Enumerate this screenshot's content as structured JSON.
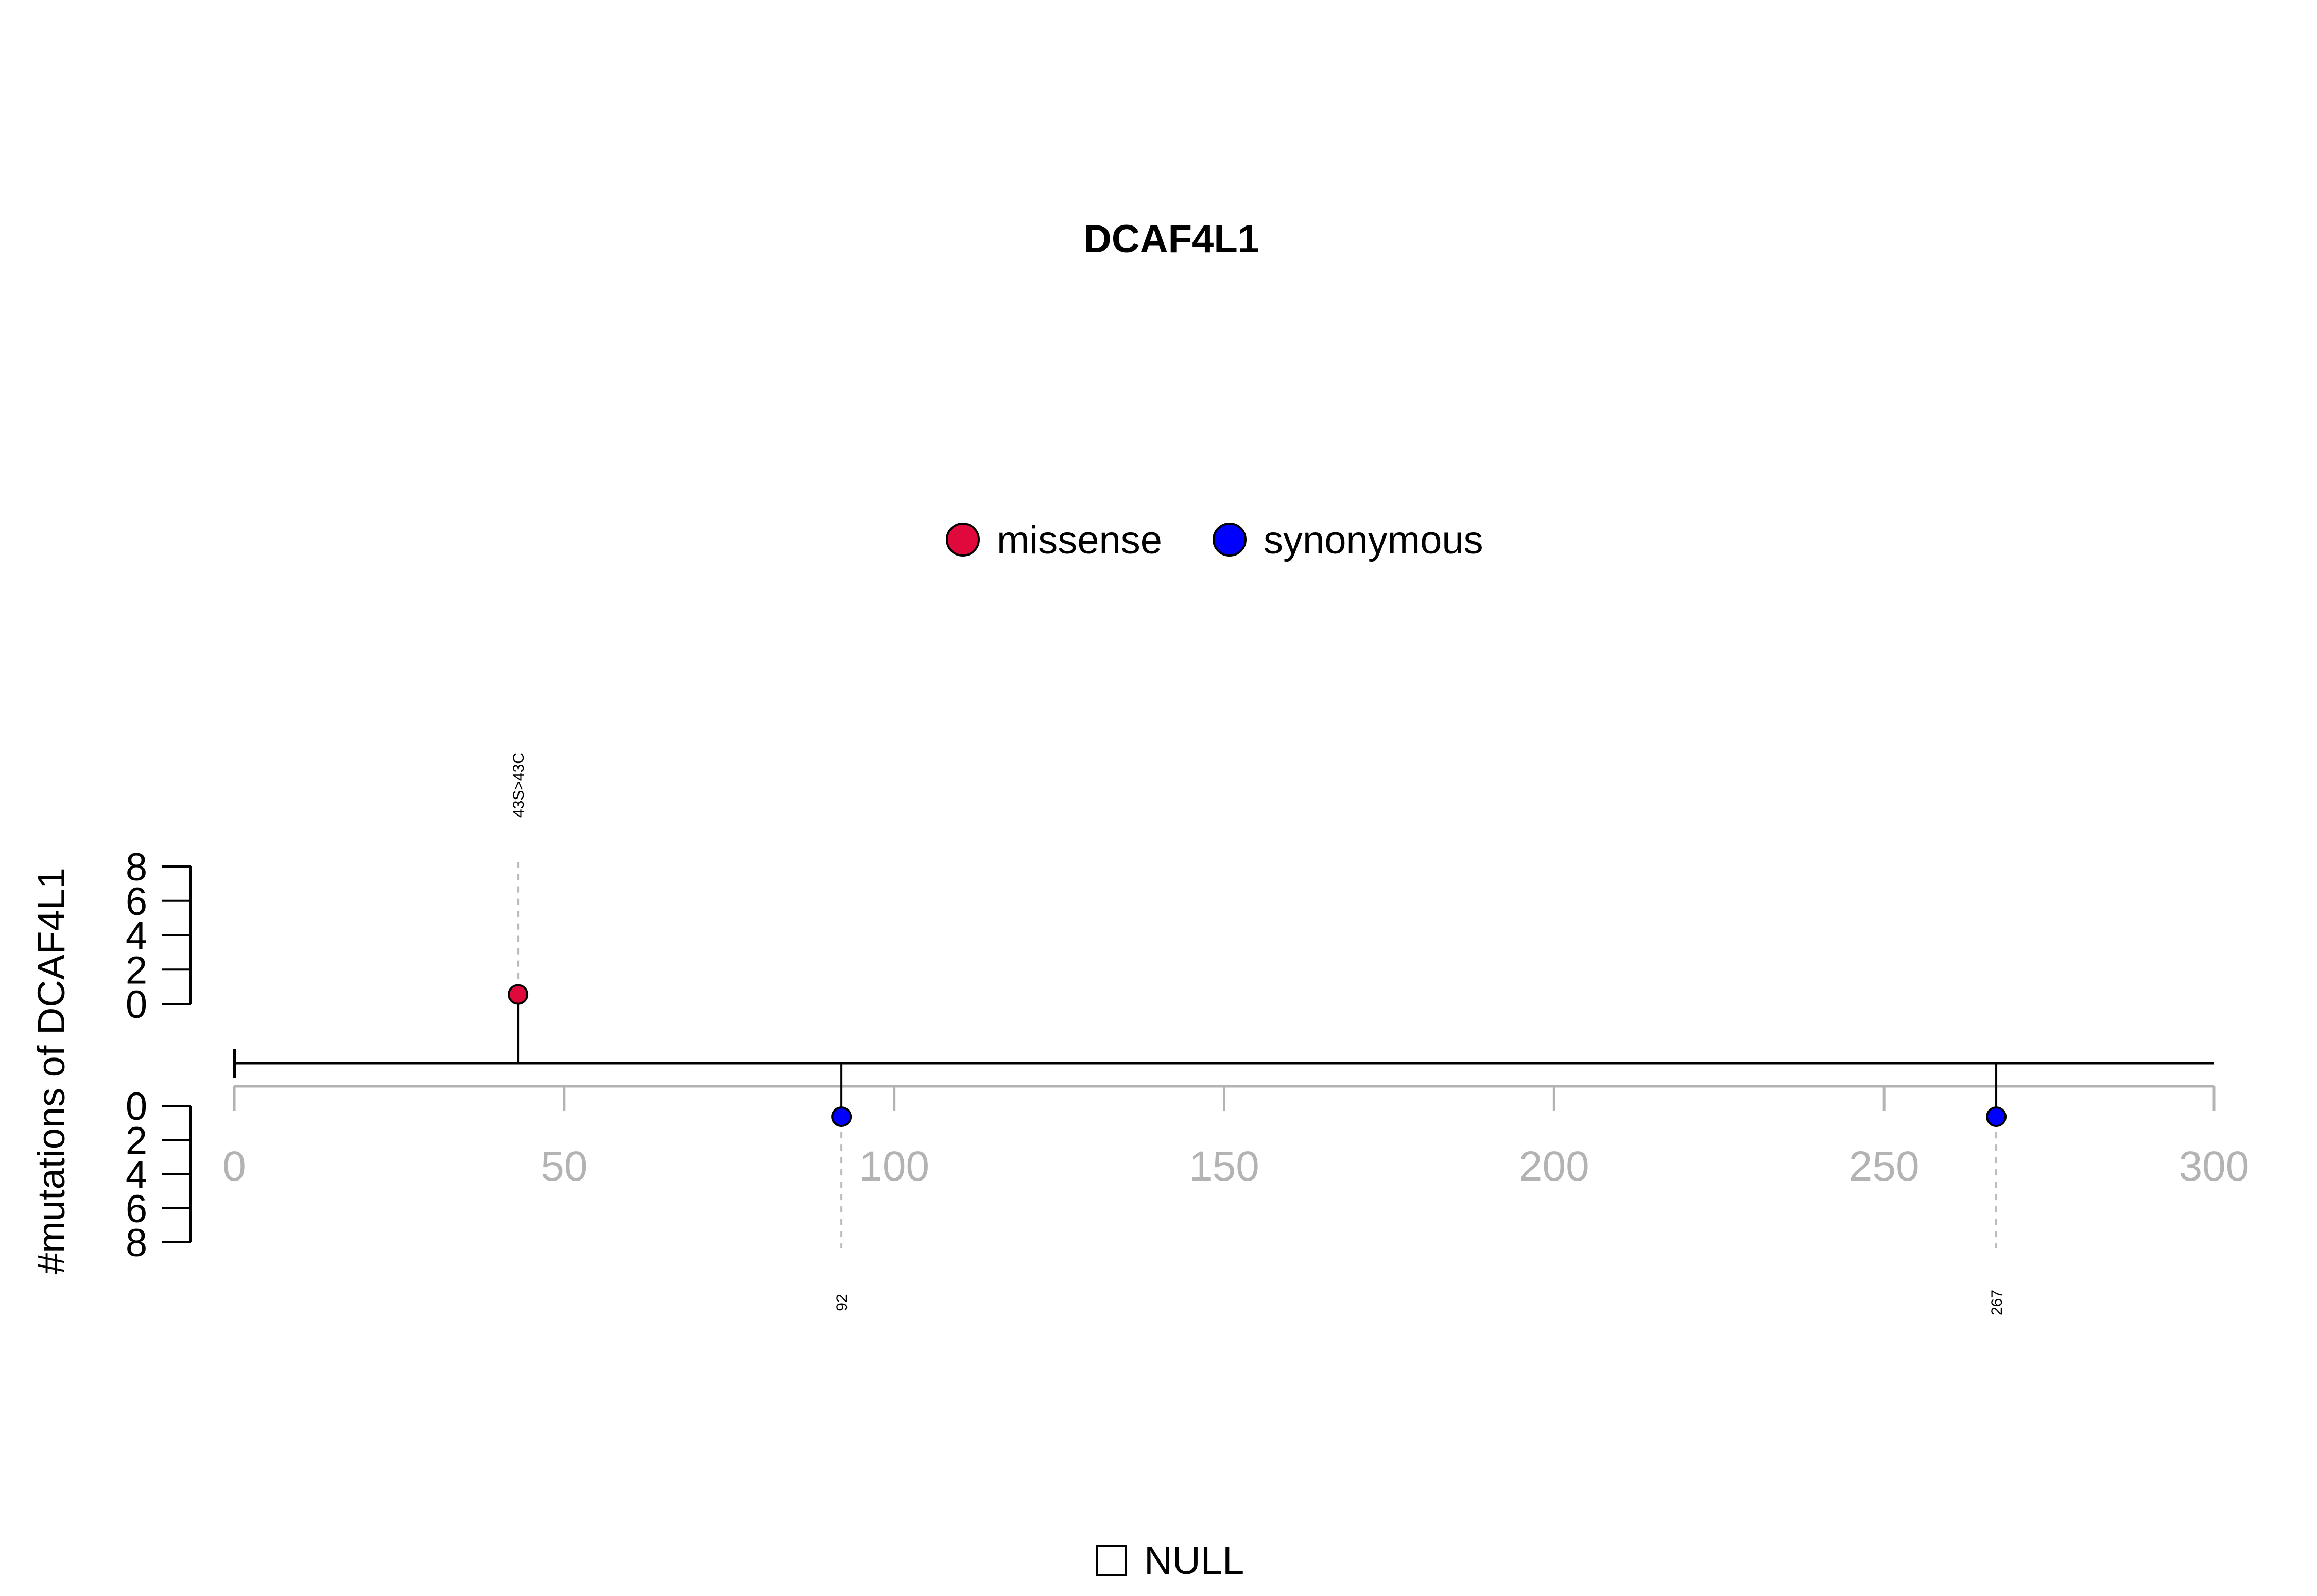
{
  "chart_data": {
    "type": "lollipop",
    "title": "DCAF4L1",
    "ylabel": "#mutations of DCAF4L1",
    "xlim": [
      0,
      300
    ],
    "x_ticks": [
      0,
      50,
      100,
      150,
      200,
      250,
      300
    ],
    "y_ticks": [
      0,
      2,
      4,
      6,
      8
    ],
    "ylim": [
      0,
      8
    ],
    "protein_length": 300,
    "legend": {
      "position": "top-center",
      "entries": [
        {
          "label": "missense",
          "color": "#e0093c"
        },
        {
          "label": "synonymous",
          "color": "#0000ff"
        }
      ]
    },
    "mutations": [
      {
        "position": 43,
        "count": 1,
        "type": "missense",
        "label": "43S>43C",
        "side": "top",
        "color": "#e0093c"
      },
      {
        "position": 92,
        "count": 1,
        "type": "synonymous",
        "label": "92",
        "side": "bottom",
        "color": "#0000ff"
      },
      {
        "position": 267,
        "count": 1,
        "type": "synonymous",
        "label": "267",
        "side": "bottom",
        "color": "#0000ff"
      }
    ],
    "domain_legend": {
      "label": "NULL"
    }
  },
  "colors": {
    "axis_grey": "#b3b3b3",
    "line": "#000000",
    "label_dash": "#bbbbbb"
  }
}
